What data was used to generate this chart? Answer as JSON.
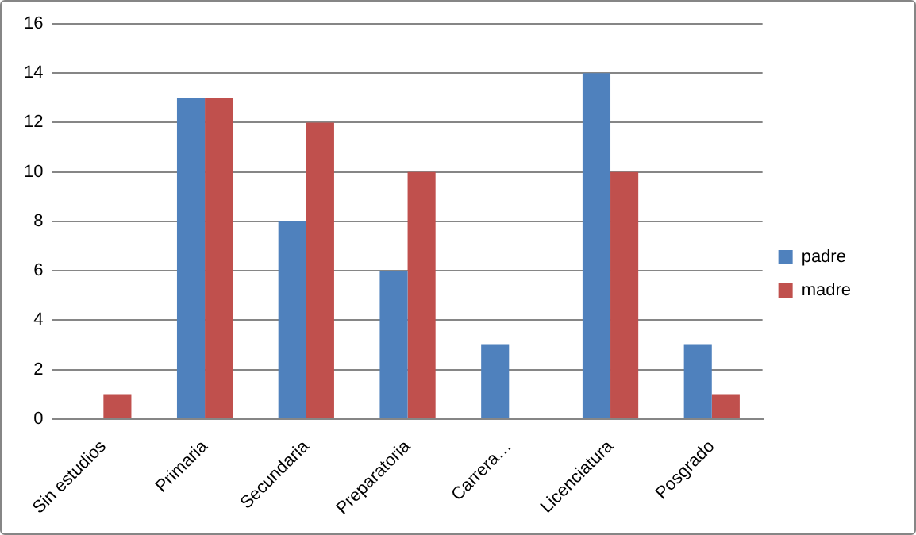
{
  "chart_data": {
    "type": "bar",
    "categories": [
      "Sin estudios",
      "Primaria",
      "Secundaria",
      "Preparatoria",
      "Carrera…",
      "Licenciatura",
      "Posgrado"
    ],
    "series": [
      {
        "name": "padre",
        "color": "#4f81bd",
        "values": [
          0,
          13,
          8,
          6,
          3,
          14,
          3
        ]
      },
      {
        "name": "madre",
        "color": "#c0504d",
        "values": [
          1,
          13,
          12,
          10,
          0,
          10,
          1
        ]
      }
    ],
    "ylim": [
      0,
      16
    ],
    "yticks": [
      0,
      2,
      4,
      6,
      8,
      10,
      12,
      14,
      16
    ],
    "grid": "y",
    "legend": "right"
  }
}
